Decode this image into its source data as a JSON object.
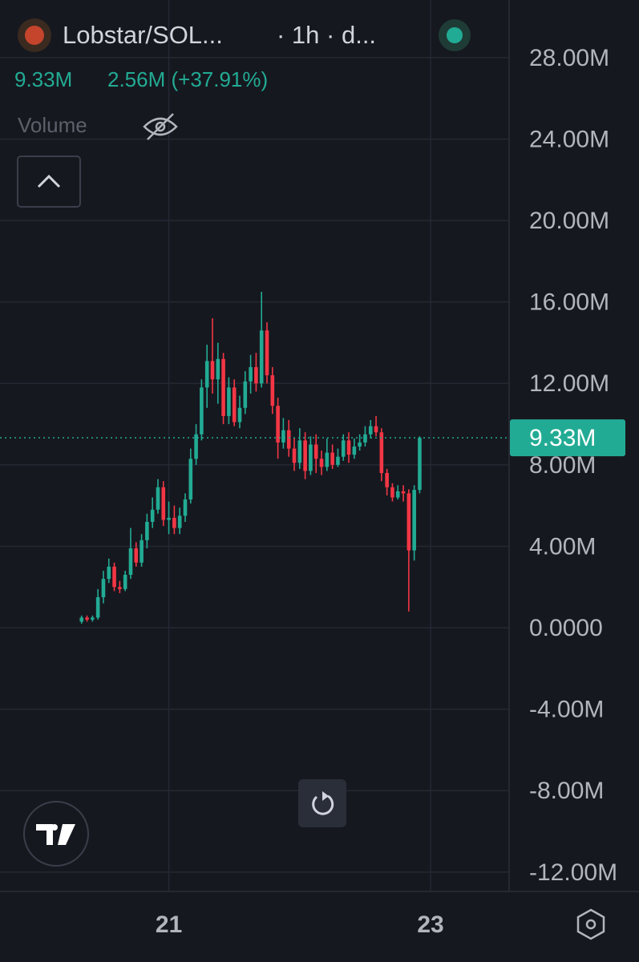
{
  "chart_data": {
    "type": "candlestick",
    "title": "Lobstar/SOL...",
    "subtitle": "· 1h · d...",
    "legend_values": [
      "9.33M",
      "2.56M (+37.91%)"
    ],
    "indicator": "Volume",
    "up_color": "#22ab94",
    "down_color": "#f23645",
    "grid": true,
    "x": [
      20.3333,
      20.375,
      20.4167,
      20.4583,
      20.5,
      20.5417,
      20.5833,
      20.625,
      20.6667,
      20.7083,
      20.75,
      20.7917,
      20.8333,
      20.875,
      20.9167,
      20.9583,
      21,
      21.0417,
      21.0833,
      21.125,
      21.1667,
      21.2083,
      21.25,
      21.2917,
      21.3333,
      21.375,
      21.4167,
      21.4583,
      21.5,
      21.5417,
      21.5833,
      21.625,
      21.6667,
      21.7083,
      21.75,
      21.7917,
      21.8333,
      21.875,
      21.9167,
      21.9583,
      22,
      22.0417,
      22.0833,
      22.125,
      22.1667,
      22.2083,
      22.25,
      22.2917,
      22.3333,
      22.375,
      22.4167,
      22.4583,
      22.5,
      22.5417,
      22.5833,
      22.625,
      22.6667,
      22.7083,
      22.75,
      22.7917,
      22.8333,
      22.875,
      22.9167
    ],
    "open": [
      0.3,
      0.5,
      0.4,
      0.5,
      1.5,
      2.4,
      3.0,
      2.0,
      1.9,
      2.6,
      3.9,
      3.2,
      4.3,
      5.2,
      5.8,
      6.9,
      5.3,
      5.4,
      4.9,
      5.5,
      6.3,
      8.3,
      9.5,
      11.8,
      13.1,
      12.2,
      13.2,
      10.4,
      11.8,
      10.1,
      10.8,
      12.1,
      12.8,
      12.0,
      14.6,
      12.4,
      10.9,
      9.1,
      9.7,
      8.8,
      8.1,
      9.2,
      7.7,
      9.0,
      8.3,
      7.9,
      8.6,
      8.0,
      8.4,
      9.2,
      8.5,
      8.9,
      9.1,
      9.5,
      9.9,
      9.6,
      7.6,
      6.9,
      6.4,
      6.7,
      6.6,
      3.8,
      6.77
    ],
    "high": [
      0.6,
      0.6,
      0.6,
      1.9,
      2.8,
      3.4,
      3.2,
      2.3,
      2.8,
      4.9,
      4.2,
      4.6,
      5.6,
      6.4,
      7.3,
      7.2,
      6.2,
      6.0,
      5.9,
      6.6,
      8.8,
      10.0,
      12.2,
      13.9,
      15.2,
      14.0,
      13.5,
      12.3,
      12.2,
      11.4,
      12.6,
      13.4,
      13.5,
      16.5,
      15.0,
      12.8,
      11.3,
      10.3,
      10.2,
      9.3,
      9.8,
      9.6,
      9.4,
      9.5,
      8.7,
      9.3,
      9.0,
      8.8,
      9.5,
      9.6,
      9.3,
      9.5,
      9.9,
      10.2,
      10.4,
      9.8,
      7.8,
      7.1,
      7.0,
      7.0,
      6.8,
      7.0,
      9.4
    ],
    "low": [
      0.2,
      0.3,
      0.3,
      0.4,
      1.2,
      2.2,
      1.8,
      1.7,
      1.8,
      2.4,
      3.0,
      3.0,
      3.9,
      4.9,
      5.6,
      5.0,
      4.6,
      4.6,
      4.6,
      5.2,
      6.1,
      8.0,
      9.2,
      10.8,
      11.5,
      11.0,
      10.0,
      10.0,
      9.9,
      9.8,
      10.5,
      11.5,
      11.6,
      11.8,
      12.0,
      10.5,
      8.3,
      8.8,
      8.4,
      7.7,
      7.8,
      7.3,
      7.5,
      7.6,
      7.5,
      7.7,
      7.8,
      7.9,
      8.2,
      8.1,
      8.3,
      8.7,
      8.9,
      9.3,
      9.4,
      7.2,
      6.5,
      6.2,
      6.3,
      6.2,
      0.8,
      3.3,
      6.6
    ],
    "close": [
      0.5,
      0.4,
      0.5,
      1.5,
      2.4,
      3.0,
      2.0,
      1.9,
      2.6,
      3.9,
      3.2,
      4.3,
      5.2,
      5.8,
      6.9,
      5.3,
      5.4,
      4.9,
      5.5,
      6.3,
      8.3,
      9.5,
      11.8,
      13.1,
      12.2,
      13.2,
      10.4,
      11.8,
      10.1,
      10.8,
      12.1,
      12.8,
      12.0,
      14.6,
      12.4,
      10.9,
      9.1,
      9.7,
      8.8,
      8.1,
      9.2,
      7.7,
      9.0,
      8.3,
      7.9,
      8.6,
      8.0,
      8.4,
      9.2,
      8.5,
      8.9,
      9.1,
      9.5,
      9.9,
      9.6,
      7.6,
      6.9,
      6.4,
      6.7,
      6.6,
      3.8,
      6.77,
      9.33
    ],
    "last_value": {
      "value": 9.33,
      "label": "9.33M"
    },
    "xlim": [
      19.71,
      23.6
    ],
    "xticks": [
      21,
      23
    ],
    "ylim": [
      -12.95,
      30.83
    ],
    "yticks": [
      {
        "value": 28,
        "label": "28.00M"
      },
      {
        "value": 24,
        "label": "24.00M"
      },
      {
        "value": 20,
        "label": "20.00M"
      },
      {
        "value": 16,
        "label": "16.00M"
      },
      {
        "value": 12,
        "label": "12.00M"
      },
      {
        "value": 8,
        "label": "8.00M"
      },
      {
        "value": 4,
        "label": "4.00M"
      },
      {
        "value": 0,
        "label": "0.0000"
      },
      {
        "value": -4,
        "label": "-4.00M"
      },
      {
        "value": -8,
        "label": "-8.00M"
      },
      {
        "value": -12,
        "label": "-12.00M"
      }
    ]
  }
}
